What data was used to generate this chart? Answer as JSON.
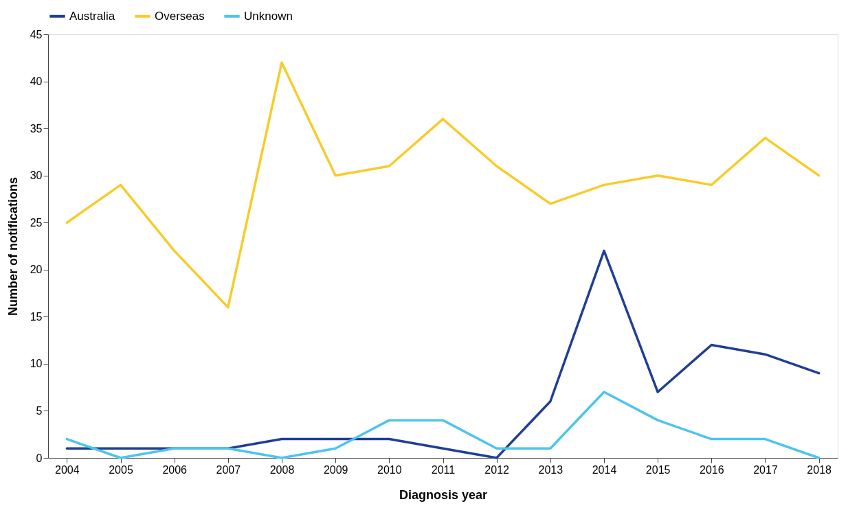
{
  "chart_data": {
    "type": "line",
    "xlabel": "Diagnosis year",
    "ylabel": "Number of notifications",
    "categories": [
      "2004",
      "2005",
      "2006",
      "2007",
      "2008",
      "2009",
      "2010",
      "2011",
      "2012",
      "2013",
      "2014",
      "2015",
      "2016",
      "2017",
      "2018"
    ],
    "series": [
      {
        "name": "Australia",
        "color": "#1f3f95",
        "values": [
          1,
          1,
          1,
          1,
          2,
          2,
          2,
          1,
          0,
          6,
          22,
          7,
          12,
          11,
          9
        ]
      },
      {
        "name": "Overseas",
        "color": "#f9cb2a",
        "values": [
          25,
          29,
          22,
          16,
          42,
          30,
          31,
          36,
          31,
          27,
          29,
          30,
          29,
          34,
          30
        ]
      },
      {
        "name": "Unknown",
        "color": "#4cc4ee",
        "values": [
          2,
          0,
          1,
          1,
          0,
          1,
          4,
          4,
          1,
          1,
          7,
          4,
          2,
          2,
          0
        ]
      }
    ],
    "ylim": [
      0,
      45
    ],
    "yticks": [
      0,
      5,
      10,
      15,
      20,
      25,
      30,
      35,
      40,
      45
    ],
    "legend": "top"
  }
}
